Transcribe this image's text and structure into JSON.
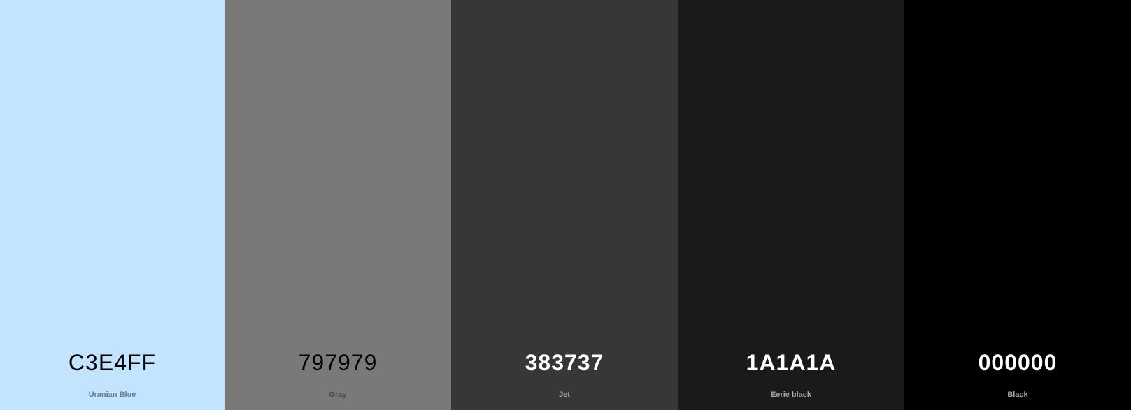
{
  "palette": {
    "swatches": [
      {
        "hex": "C3E4FF",
        "name": "Uranian Blue",
        "color": "#C3E4FF"
      },
      {
        "hex": "797979",
        "name": "Gray",
        "color": "#797979"
      },
      {
        "hex": "383737",
        "name": "Jet",
        "color": "#383737"
      },
      {
        "hex": "1A1A1A",
        "name": "Eerie black",
        "color": "#1A1A1A"
      },
      {
        "hex": "000000",
        "name": "Black",
        "color": "#000000"
      }
    ]
  }
}
